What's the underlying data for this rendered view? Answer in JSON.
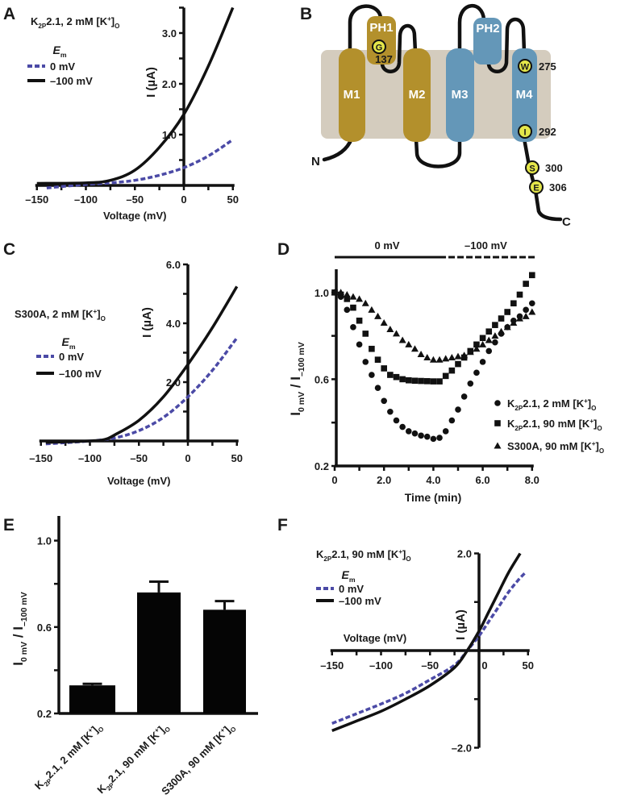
{
  "panel_letters": [
    "A",
    "B",
    "C",
    "D",
    "E",
    "F"
  ],
  "colors": {
    "zero_mV": "#4b4aa6",
    "minus100_mV": "#111111",
    "helix_gold": "#b3902c",
    "helix_blue": "#6497b8",
    "membrane": "#d4ccbe",
    "residue": "#e4e64a"
  },
  "chart_data": [
    {
      "panel": "A",
      "type": "line",
      "title": [
        [
          "K",
          ""
        ],
        [
          "2P",
          "sub"
        ],
        [
          "2.1, 2 mM [K",
          ""
        ],
        [
          "+",
          "sup"
        ],
        [
          "]",
          ""
        ],
        [
          "O",
          "sub"
        ]
      ],
      "legend_title": [
        [
          "E",
          "i"
        ],
        [
          "m",
          "sub"
        ]
      ],
      "xlabel": "Voltage (mV)",
      "ylabel": "I (µA)",
      "xlim": [
        -150,
        50
      ],
      "ylim": [
        0,
        3.5
      ],
      "xticks": [
        "–150",
        "–100",
        "–50",
        "0",
        "50"
      ],
      "xtick_values": [
        -150,
        -100,
        -50,
        0,
        50
      ],
      "yticks": [
        "1.0",
        "2.0",
        "3.0"
      ],
      "ytick_values": [
        1,
        2,
        3
      ],
      "series": [
        {
          "name": "0 mV",
          "style": "dashed",
          "color": "#4b4aa6",
          "x": [
            -140,
            -100,
            -75,
            -50,
            -25,
            0,
            25,
            50
          ],
          "y": [
            -0.05,
            0.02,
            0.05,
            0.1,
            0.2,
            0.35,
            0.58,
            0.9
          ]
        },
        {
          "name": "–100 mV",
          "style": "solid",
          "color": "#111111",
          "x": [
            -150,
            -100,
            -75,
            -50,
            -25,
            0,
            25,
            50
          ],
          "y": [
            0.04,
            0.05,
            0.1,
            0.3,
            0.75,
            1.4,
            2.35,
            3.5
          ]
        }
      ]
    },
    {
      "panel": "C",
      "type": "line",
      "title": [
        [
          "S300A, 2 mM [K",
          ""
        ],
        [
          "+",
          "sup"
        ],
        [
          "]",
          ""
        ],
        [
          "O",
          "sub"
        ]
      ],
      "legend_title": [
        [
          "E",
          "i"
        ],
        [
          "m",
          "sub"
        ]
      ],
      "xlabel": "Voltage (mV)",
      "ylabel": "I (µA)",
      "xlim": [
        -150,
        50
      ],
      "ylim": [
        0,
        6
      ],
      "xticks": [
        "–150",
        "–100",
        "–50",
        "0",
        "50"
      ],
      "xtick_values": [
        -150,
        -100,
        -50,
        0,
        50
      ],
      "yticks": [
        "2.0",
        "4.0",
        "6.0"
      ],
      "ytick_values": [
        2,
        4,
        6
      ],
      "series": [
        {
          "name": "0 mV",
          "style": "dashed",
          "color": "#4b4aa6",
          "x": [
            -145,
            -100,
            -75,
            -50,
            -25,
            0,
            25,
            50
          ],
          "y": [
            -0.1,
            0,
            0.1,
            0.35,
            0.8,
            1.5,
            2.4,
            3.5
          ]
        },
        {
          "name": "–100 mV",
          "style": "solid",
          "color": "#111111",
          "x": [
            -145,
            -100,
            -85,
            -75,
            -50,
            -25,
            0,
            25,
            50
          ],
          "y": [
            -0.05,
            0,
            0.05,
            0.2,
            0.7,
            1.5,
            2.6,
            3.85,
            5.25
          ]
        }
      ]
    },
    {
      "panel": "D",
      "type": "scatter",
      "protocol": [
        {
          "label": "0 mV",
          "from": 0,
          "to": 4.25,
          "style": "solid"
        },
        {
          "label": "–100 mV",
          "from": 4.25,
          "to": 8,
          "style": "dashed"
        }
      ],
      "xlabel": "Time (min)",
      "ylabel": [
        [
          "I",
          ""
        ],
        [
          "0 mV",
          "sub"
        ],
        [
          " / I",
          ""
        ],
        [
          "–100 mV",
          "sub"
        ]
      ],
      "xlim": [
        0,
        8
      ],
      "ylim": [
        0.2,
        1.1
      ],
      "xticks": [
        "0",
        "2.0",
        "4.0",
        "6.0",
        "8.0"
      ],
      "xtick_values": [
        0,
        2,
        4,
        6,
        8
      ],
      "yticks": [
        "0.2",
        "0.6",
        "1.0"
      ],
      "ytick_values": [
        0.2,
        0.6,
        1.0
      ],
      "x": [
        0,
        0.25,
        0.5,
        0.75,
        1,
        1.25,
        1.5,
        1.75,
        2,
        2.25,
        2.5,
        2.75,
        3,
        3.25,
        3.5,
        3.75,
        4,
        4.25,
        4.5,
        4.75,
        5,
        5.25,
        5.5,
        5.75,
        6,
        6.25,
        6.5,
        6.75,
        7,
        7.25,
        7.5,
        7.75,
        8
      ],
      "series": [
        {
          "name": [
            [
              "K",
              ""
            ],
            [
              "2P",
              "sub"
            ],
            [
              "2.1, 2 mM [K",
              ""
            ],
            [
              "+",
              "sup"
            ],
            [
              "]",
              ""
            ],
            [
              "O",
              "sub"
            ]
          ],
          "marker": "circle",
          "y": [
            1.0,
            0.98,
            0.92,
            0.84,
            0.76,
            0.68,
            0.62,
            0.56,
            0.5,
            0.45,
            0.41,
            0.38,
            0.36,
            0.35,
            0.34,
            0.335,
            0.325,
            0.33,
            0.36,
            0.41,
            0.46,
            0.52,
            0.58,
            0.63,
            0.68,
            0.73,
            0.77,
            0.81,
            0.84,
            0.87,
            0.89,
            0.92,
            0.95
          ]
        },
        {
          "name": [
            [
              "K",
              ""
            ],
            [
              "2P",
              "sub"
            ],
            [
              "2.1, 90 mM [K",
              ""
            ],
            [
              "+",
              "sup"
            ],
            [
              "]",
              ""
            ],
            [
              "O",
              "sub"
            ]
          ],
          "marker": "square",
          "y": [
            1.0,
            0.99,
            0.97,
            0.93,
            0.87,
            0.81,
            0.74,
            0.69,
            0.65,
            0.62,
            0.61,
            0.6,
            0.595,
            0.593,
            0.592,
            0.591,
            0.59,
            0.59,
            0.615,
            0.64,
            0.67,
            0.7,
            0.73,
            0.76,
            0.79,
            0.82,
            0.85,
            0.88,
            0.91,
            0.95,
            0.99,
            1.04,
            1.08
          ]
        },
        {
          "name": [
            [
              "S300A, 90 mM [K",
              ""
            ],
            [
              "+",
              "sup"
            ],
            [
              "]",
              ""
            ],
            [
              "O",
              "sub"
            ]
          ],
          "marker": "triangle",
          "y": [
            1.0,
            1.0,
            0.99,
            0.98,
            0.97,
            0.95,
            0.92,
            0.89,
            0.86,
            0.83,
            0.81,
            0.78,
            0.76,
            0.74,
            0.715,
            0.7,
            0.69,
            0.69,
            0.695,
            0.7,
            0.705,
            0.71,
            0.725,
            0.74,
            0.76,
            0.78,
            0.8,
            0.82,
            0.84,
            0.86,
            0.88,
            0.89,
            0.91
          ]
        }
      ]
    },
    {
      "panel": "E",
      "type": "bar",
      "ylabel": [
        [
          "I",
          ""
        ],
        [
          "0 mV",
          "sub"
        ],
        [
          " / I",
          ""
        ],
        [
          "–100 mV",
          "sub"
        ]
      ],
      "ylim": [
        0.2,
        1.1
      ],
      "yticks": [
        "0.2",
        "0.6",
        "1.0"
      ],
      "ytick_values": [
        0.2,
        0.6,
        1.0
      ],
      "categories": [
        [
          [
            "K",
            ""
          ],
          [
            "2P",
            "sub"
          ],
          [
            "2.1, 2 mM [K",
            ""
          ],
          [
            "+",
            "sup"
          ],
          [
            "]",
            ""
          ],
          [
            "O",
            "sub"
          ]
        ],
        [
          [
            "K",
            ""
          ],
          [
            "2P",
            "sub"
          ],
          [
            "2.1, 90 mM [K",
            ""
          ],
          [
            "+",
            "sup"
          ],
          [
            "]",
            ""
          ],
          [
            "O",
            "sub"
          ]
        ],
        [
          [
            "S300A, 90 mM [K",
            ""
          ],
          [
            "+",
            "sup"
          ],
          [
            "]",
            ""
          ],
          [
            "O",
            "sub"
          ]
        ]
      ],
      "values": [
        0.33,
        0.76,
        0.68
      ],
      "errors": [
        0.007,
        0.05,
        0.04
      ]
    },
    {
      "panel": "F",
      "type": "line",
      "title": [
        [
          "K",
          ""
        ],
        [
          "2P",
          "sub"
        ],
        [
          "2.1, 90 mM [K",
          ""
        ],
        [
          "+",
          "sup"
        ],
        [
          "]",
          ""
        ],
        [
          "O",
          "sub"
        ]
      ],
      "legend_title": [
        [
          "E",
          "i"
        ],
        [
          "m",
          "sub"
        ]
      ],
      "xlabel": "Voltage (mV)",
      "ylabel": "I (µA)",
      "xlim": [
        -150,
        50
      ],
      "ylim": [
        -2,
        2
      ],
      "xticks": [
        "–150",
        "–100",
        "–50",
        "0",
        "50"
      ],
      "xtick_values": [
        -150,
        -100,
        -50,
        0,
        50
      ],
      "yticks": [
        "–2.0",
        "2.0"
      ],
      "ytick_values": [
        -2,
        2
      ],
      "series": [
        {
          "name": "0 mV",
          "style": "dashed",
          "color": "#4b4aa6",
          "x": [
            -150,
            -125,
            -100,
            -75,
            -50,
            -25,
            -12,
            0,
            10,
            20,
            30,
            40,
            47
          ],
          "y": [
            -1.5,
            -1.3,
            -1.1,
            -0.88,
            -0.6,
            -0.3,
            0,
            0.3,
            0.6,
            0.9,
            1.2,
            1.45,
            1.6
          ]
        },
        {
          "name": "–100 mV",
          "style": "solid",
          "color": "#111111",
          "x": [
            -150,
            -125,
            -100,
            -75,
            -50,
            -25,
            -12,
            0,
            10,
            20,
            30,
            42
          ],
          "y": [
            -1.65,
            -1.45,
            -1.25,
            -1.0,
            -0.72,
            -0.35,
            0,
            0.4,
            0.8,
            1.2,
            1.6,
            2.0
          ]
        }
      ]
    }
  ],
  "topology": {
    "helices": [
      "M1",
      "M2",
      "M3",
      "M4"
    ],
    "pore_helices": [
      "PH1",
      "PH2"
    ],
    "residues": [
      {
        "letter": "G",
        "number": "137"
      },
      {
        "letter": "W",
        "number": "275"
      },
      {
        "letter": "I",
        "number": "292"
      },
      {
        "letter": "S",
        "number": "300"
      },
      {
        "letter": "E",
        "number": "306"
      }
    ],
    "n_terminus": "N",
    "c_terminus": "C"
  }
}
